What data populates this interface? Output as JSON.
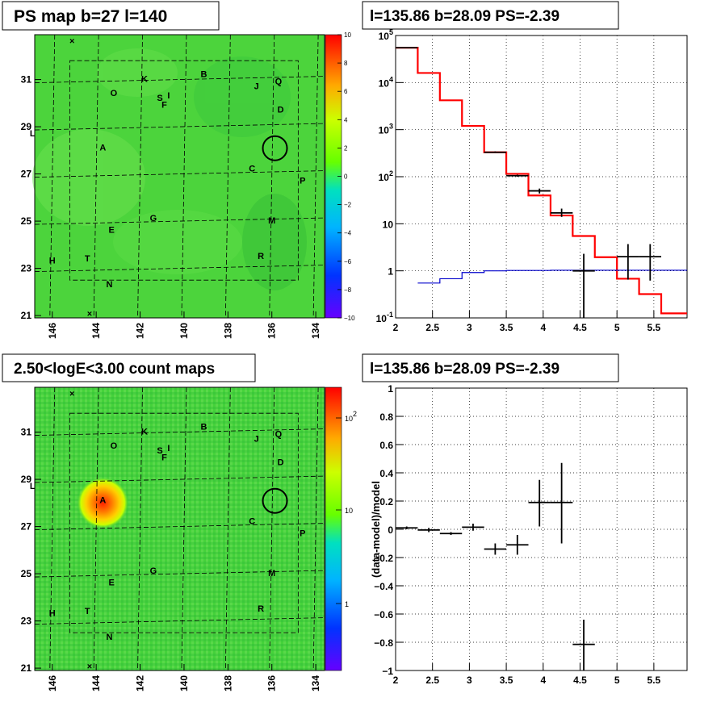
{
  "chart_data": [
    {
      "type": "heatmap",
      "title": "PS map b=27 l=140",
      "x_ticks": [
        "146",
        "144",
        "142",
        "140",
        "138",
        "136",
        "134"
      ],
      "y_ticks": [
        "31",
        "29",
        "27",
        "25",
        "23",
        "21"
      ],
      "xlim": [
        146.8,
        133.6
      ],
      "ylim": [
        20.9,
        32.9
      ],
      "colorbar_ticks": [
        "10",
        "8",
        "6",
        "4",
        "2",
        "0",
        "−2",
        "−4",
        "−6",
        "−8",
        "−10"
      ],
      "colorbar_range": [
        -10,
        10
      ],
      "sources": [
        {
          "label": "K",
          "l": 141.8,
          "b": 30.9
        },
        {
          "label": "B",
          "l": 139.1,
          "b": 31.1
        },
        {
          "label": "J",
          "l": 136.7,
          "b": 30.6
        },
        {
          "label": "Q",
          "l": 135.7,
          "b": 30.8
        },
        {
          "label": "O",
          "l": 143.2,
          "b": 30.3
        },
        {
          "label": "S",
          "l": 141.1,
          "b": 30.1
        },
        {
          "label": "I",
          "l": 140.7,
          "b": 30.2
        },
        {
          "label": "F",
          "l": 140.9,
          "b": 29.8
        },
        {
          "label": "D",
          "l": 135.6,
          "b": 29.6
        },
        {
          "label": "A",
          "l": 143.7,
          "b": 28.0
        },
        {
          "label": "C",
          "l": 136.9,
          "b": 27.1
        },
        {
          "label": "P",
          "l": 134.6,
          "b": 26.6
        },
        {
          "label": "G",
          "l": 141.4,
          "b": 25.0
        },
        {
          "label": "M",
          "l": 136.0,
          "b": 24.9
        },
        {
          "label": "E",
          "l": 143.3,
          "b": 24.5
        },
        {
          "label": "H",
          "l": 146.0,
          "b": 23.2
        },
        {
          "label": "T",
          "l": 144.4,
          "b": 23.3
        },
        {
          "label": "R",
          "l": 136.5,
          "b": 23.4
        },
        {
          "label": "N",
          "l": 143.4,
          "b": 22.2
        },
        {
          "label": "L",
          "l": 146.9,
          "b": 28.6
        }
      ],
      "marked_position": {
        "l": 135.86,
        "b": 28.09
      }
    },
    {
      "type": "line",
      "title": "l=135.86 b=28.09 PS=-2.39",
      "xlim": [
        2,
        5.95
      ],
      "ylim": [
        0.1,
        100000
      ],
      "y_scale": "log",
      "x_ticks": [
        "2",
        "2.5",
        "3",
        "3.5",
        "4",
        "4.5",
        "5",
        "5.5"
      ],
      "y_ticks": [
        "10<sup>-1</sup>",
        "1",
        "10",
        "10<sup>2</sup>",
        "10<sup>3</sup>",
        "10<sup>4</sup>",
        "10<sup>5</sup>"
      ],
      "grid": true,
      "series": [
        {
          "color": "#ff0000",
          "style": "step",
          "bin_edges": [
            2,
            2.3,
            2.6,
            2.9,
            3.2,
            3.5,
            3.8,
            4.1,
            4.4,
            4.7,
            5.0,
            5.3,
            5.6,
            5.95
          ],
          "values": [
            55000,
            16000,
            4200,
            1200,
            330,
            115,
            40,
            15,
            5.5,
            1.95,
            0.68,
            0.32,
            0.125
          ]
        },
        {
          "color": "#0000cc",
          "style": "step",
          "bin_edges": [
            2.3,
            2.6,
            2.9,
            3.2,
            3.5,
            3.8,
            4.1,
            4.4,
            4.7,
            5.0,
            5.3,
            5.6,
            5.95
          ],
          "values": [
            0.55,
            0.68,
            0.92,
            1.0,
            1.02,
            1.02,
            1.03,
            1.03,
            1.03,
            1.03,
            1.03,
            1.03
          ]
        },
        {
          "color": "#000000",
          "style": "errorbars",
          "points": [
            {
              "x": 2.15,
              "xerr": 0.15,
              "y": 55000,
              "ylo": 55000,
              "yhi": 55000
            },
            {
              "x": 3.35,
              "xerr": 0.15,
              "y": 330,
              "ylo": 320,
              "yhi": 345
            },
            {
              "x": 3.65,
              "xerr": 0.15,
              "y": 105,
              "ylo": 100,
              "yhi": 110
            },
            {
              "x": 3.95,
              "xerr": 0.15,
              "y": 50,
              "ylo": 44,
              "yhi": 56
            },
            {
              "x": 4.25,
              "xerr": 0.15,
              "y": 17,
              "ylo": 14,
              "yhi": 21
            },
            {
              "x": 4.55,
              "xerr": 0.15,
              "y": 1.0,
              "ylo": 0.1,
              "yhi": 2.3
            },
            {
              "x": 5.15,
              "xerr": 0.15,
              "y": 2.0,
              "ylo": 0.65,
              "yhi": 3.7
            },
            {
              "x": 5.45,
              "xerr": 0.15,
              "y": 2.0,
              "ylo": 0.62,
              "yhi": 3.7
            }
          ]
        }
      ]
    },
    {
      "type": "heatmap",
      "title": "2.50<logE<3.00 count maps",
      "x_ticks": [
        "146",
        "144",
        "142",
        "140",
        "138",
        "136",
        "134"
      ],
      "y_ticks": [
        "31",
        "29",
        "27",
        "25",
        "23",
        "21"
      ],
      "xlim": [
        146.8,
        133.6
      ],
      "ylim": [
        20.9,
        32.9
      ],
      "colorbar_scale": "log",
      "colorbar_ticks": [
        "10<sup>2</sup>",
        "10",
        "1"
      ],
      "hotspot": {
        "label": "A",
        "l": 143.7,
        "b": 28.0
      },
      "marked_position": {
        "l": 135.86,
        "b": 28.09
      }
    },
    {
      "type": "scatter",
      "title": "l=135.86 b=28.09 PS=-2.39",
      "ylabel": "(data-model)/model",
      "xlim": [
        2,
        5.95
      ],
      "ylim": [
        -1,
        1
      ],
      "x_ticks": [
        "2",
        "2.5",
        "3",
        "3.5",
        "4",
        "4.5",
        "5",
        "5.5"
      ],
      "y_ticks": [
        "1",
        "0.8",
        "0.6",
        "0.4",
        "0.2",
        "0",
        "−0.2",
        "−0.4",
        "−0.6",
        "−0.8",
        "−1"
      ],
      "grid": true,
      "points": [
        {
          "x": 2.15,
          "xerr": 0.15,
          "y": 0.01,
          "ylo": 0.0,
          "yhi": 0.02
        },
        {
          "x": 2.45,
          "xerr": 0.15,
          "y": -0.005,
          "ylo": -0.02,
          "yhi": 0.01
        },
        {
          "x": 2.75,
          "xerr": 0.15,
          "y": -0.03,
          "ylo": -0.04,
          "yhi": -0.02
        },
        {
          "x": 3.05,
          "xerr": 0.15,
          "y": 0.015,
          "ylo": -0.01,
          "yhi": 0.04
        },
        {
          "x": 3.35,
          "xerr": 0.15,
          "y": -0.14,
          "ylo": -0.18,
          "yhi": -0.1
        },
        {
          "x": 3.65,
          "xerr": 0.15,
          "y": -0.11,
          "ylo": -0.18,
          "yhi": -0.04
        },
        {
          "x": 3.95,
          "xerr": 0.15,
          "y": 0.19,
          "ylo": 0.02,
          "yhi": 0.35
        },
        {
          "x": 4.25,
          "xerr": 0.15,
          "y": 0.19,
          "ylo": -0.1,
          "yhi": 0.47
        },
        {
          "x": 4.55,
          "xerr": 0.15,
          "y": -0.815,
          "ylo": -1.0,
          "yhi": -0.64
        }
      ]
    }
  ]
}
